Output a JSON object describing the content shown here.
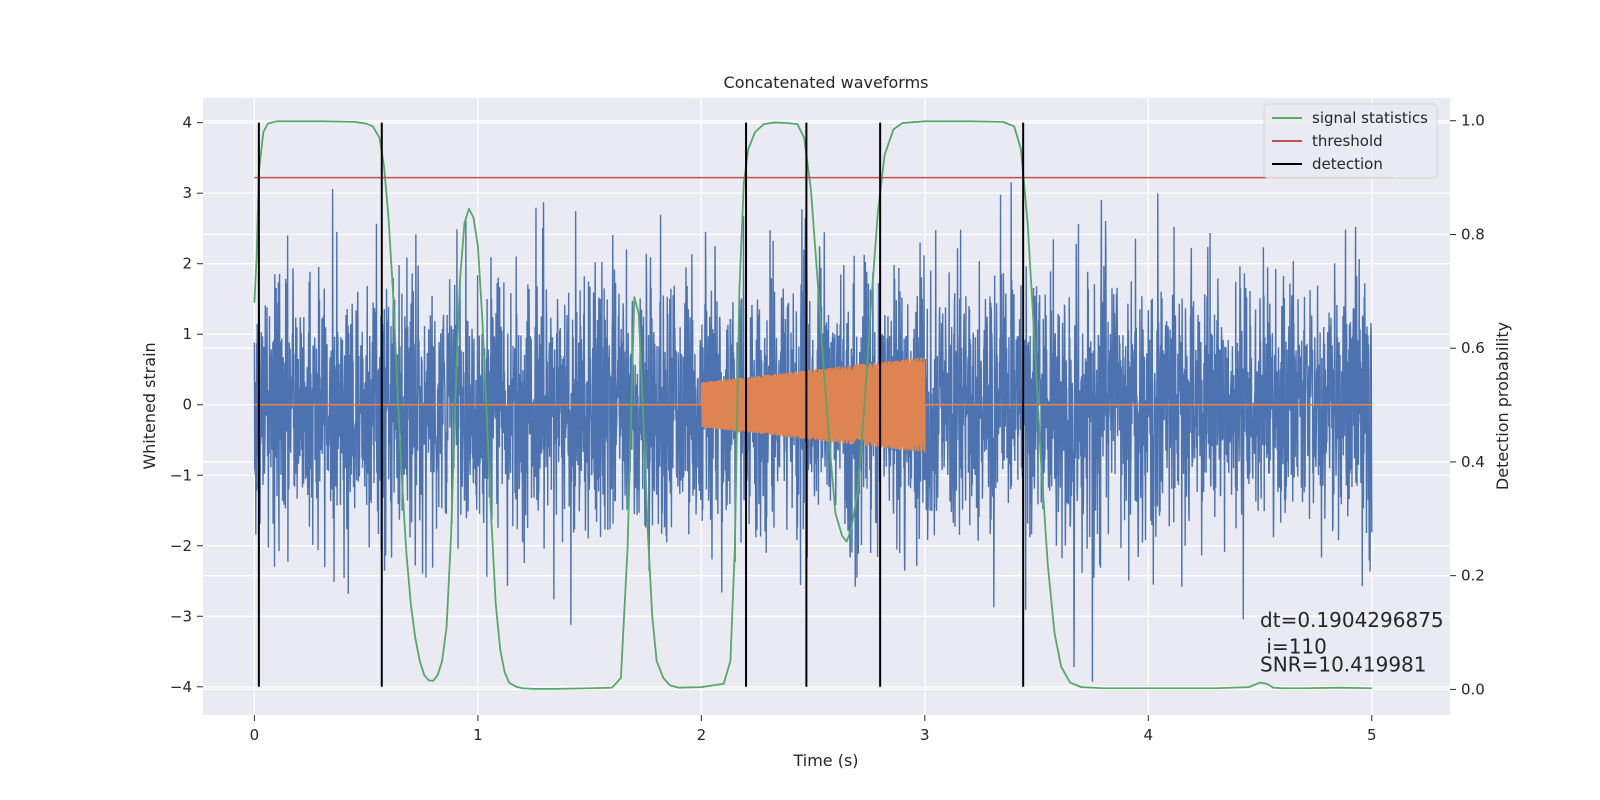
{
  "chart_data": {
    "type": "line",
    "title": "Concatenated waveforms",
    "xlabel": "Time (s)",
    "ylabel": "Whitened strain",
    "y2label": "Detection probability",
    "xlim": [
      -0.23,
      5.35
    ],
    "ylim": [
      -4.4,
      4.35
    ],
    "y2lim": [
      -0.045,
      1.04
    ],
    "xticks": [
      0,
      1,
      2,
      3,
      4,
      5
    ],
    "xtick_labels": [
      "0",
      "1",
      "2",
      "3",
      "4",
      "5"
    ],
    "yticks": [
      -4,
      -3,
      -2,
      -1,
      0,
      1,
      2,
      3,
      4
    ],
    "ytick_labels": [
      "−4",
      "−3",
      "−2",
      "−1",
      "0",
      "1",
      "2",
      "3",
      "4"
    ],
    "y2ticks": [
      0.0,
      0.2,
      0.4,
      0.6,
      0.8,
      1.0
    ],
    "y2tick_labels": [
      "0.0",
      "0.2",
      "0.4",
      "0.6",
      "0.8",
      "1.0"
    ],
    "grid": true,
    "legend_position": "top-right",
    "series": [
      {
        "name": "",
        "axis": "left",
        "color": "#4c72b0",
        "kind": "noise",
        "x_range": [
          0,
          5
        ],
        "samples": 4000,
        "amplitude_std": 0.95
      },
      {
        "name": "",
        "axis": "left",
        "color": "#dd8452",
        "kind": "chirp",
        "x_range": [
          0,
          5
        ],
        "chirp_start": 2.0,
        "chirp_end": 3.0,
        "amplitude_start": 0.32,
        "amplitude_end": 0.68
      },
      {
        "name": "signal statistics",
        "axis": "right",
        "color": "#55a868",
        "x": [
          0.0,
          0.01,
          0.02,
          0.04,
          0.06,
          0.1,
          0.2,
          0.3,
          0.45,
          0.5,
          0.53,
          0.56,
          0.58,
          0.6,
          0.62,
          0.64,
          0.66,
          0.68,
          0.7,
          0.72,
          0.74,
          0.76,
          0.78,
          0.8,
          0.82,
          0.84,
          0.86,
          0.88,
          0.9,
          0.92,
          0.94,
          0.96,
          0.98,
          1.0,
          1.02,
          1.04,
          1.06,
          1.08,
          1.1,
          1.12,
          1.14,
          1.17,
          1.2,
          1.25,
          1.35,
          1.5,
          1.6,
          1.64,
          1.67,
          1.7,
          1.72,
          1.74,
          1.76,
          1.78,
          1.8,
          1.83,
          1.86,
          1.9,
          2.0,
          2.1,
          2.13,
          2.15,
          2.17,
          2.19,
          2.21,
          2.24,
          2.28,
          2.33,
          2.38,
          2.43,
          2.46,
          2.49,
          2.52,
          2.55,
          2.58,
          2.6,
          2.63,
          2.65,
          2.67,
          2.7,
          2.73,
          2.76,
          2.79,
          2.82,
          2.86,
          2.9,
          3.0,
          3.2,
          3.35,
          3.4,
          3.43,
          3.46,
          3.49,
          3.52,
          3.55,
          3.58,
          3.61,
          3.65,
          3.7,
          3.8,
          4.0,
          4.3,
          4.45,
          4.5,
          4.53,
          4.56,
          4.6,
          4.7,
          4.85,
          5.0
        ],
        "y": [
          0.68,
          0.76,
          0.91,
          0.98,
          0.995,
          0.999,
          0.999,
          0.999,
          0.998,
          0.995,
          0.99,
          0.97,
          0.92,
          0.83,
          0.7,
          0.53,
          0.37,
          0.24,
          0.15,
          0.09,
          0.05,
          0.025,
          0.016,
          0.015,
          0.025,
          0.05,
          0.11,
          0.27,
          0.52,
          0.72,
          0.82,
          0.845,
          0.83,
          0.78,
          0.65,
          0.48,
          0.3,
          0.15,
          0.07,
          0.03,
          0.012,
          0.005,
          0.002,
          0.001,
          0.001,
          0.002,
          0.003,
          0.02,
          0.25,
          0.69,
          0.66,
          0.48,
          0.28,
          0.13,
          0.05,
          0.02,
          0.007,
          0.003,
          0.004,
          0.01,
          0.05,
          0.25,
          0.7,
          0.89,
          0.95,
          0.98,
          0.994,
          0.997,
          0.996,
          0.994,
          0.97,
          0.88,
          0.72,
          0.55,
          0.4,
          0.31,
          0.27,
          0.26,
          0.28,
          0.35,
          0.5,
          0.68,
          0.84,
          0.94,
          0.985,
          0.996,
          0.999,
          0.999,
          0.998,
          0.99,
          0.95,
          0.82,
          0.62,
          0.4,
          0.22,
          0.1,
          0.04,
          0.012,
          0.004,
          0.002,
          0.002,
          0.002,
          0.004,
          0.012,
          0.01,
          0.003,
          0.002,
          0.002,
          0.003,
          0.002
        ]
      },
      {
        "name": "threshold",
        "axis": "right",
        "color": "#c44e52",
        "x": [
          0.0,
          5.1
        ],
        "y": [
          0.9,
          0.9
        ]
      },
      {
        "name": "detection",
        "axis": "left",
        "color": "#000000",
        "vlines": [
          0.02,
          0.57,
          2.2,
          2.47,
          2.8,
          3.44
        ],
        "ymin": -4.0,
        "ymax": 4.0
      }
    ],
    "annotations": [
      {
        "text": "dt=0.1904296875",
        "x": 4.5,
        "y": -3.15
      },
      {
        "text": " i=110",
        "x": 4.5,
        "y": -3.53
      },
      {
        "text": "SNR=10.419981",
        "x": 4.5,
        "y": -3.78
      }
    ]
  }
}
